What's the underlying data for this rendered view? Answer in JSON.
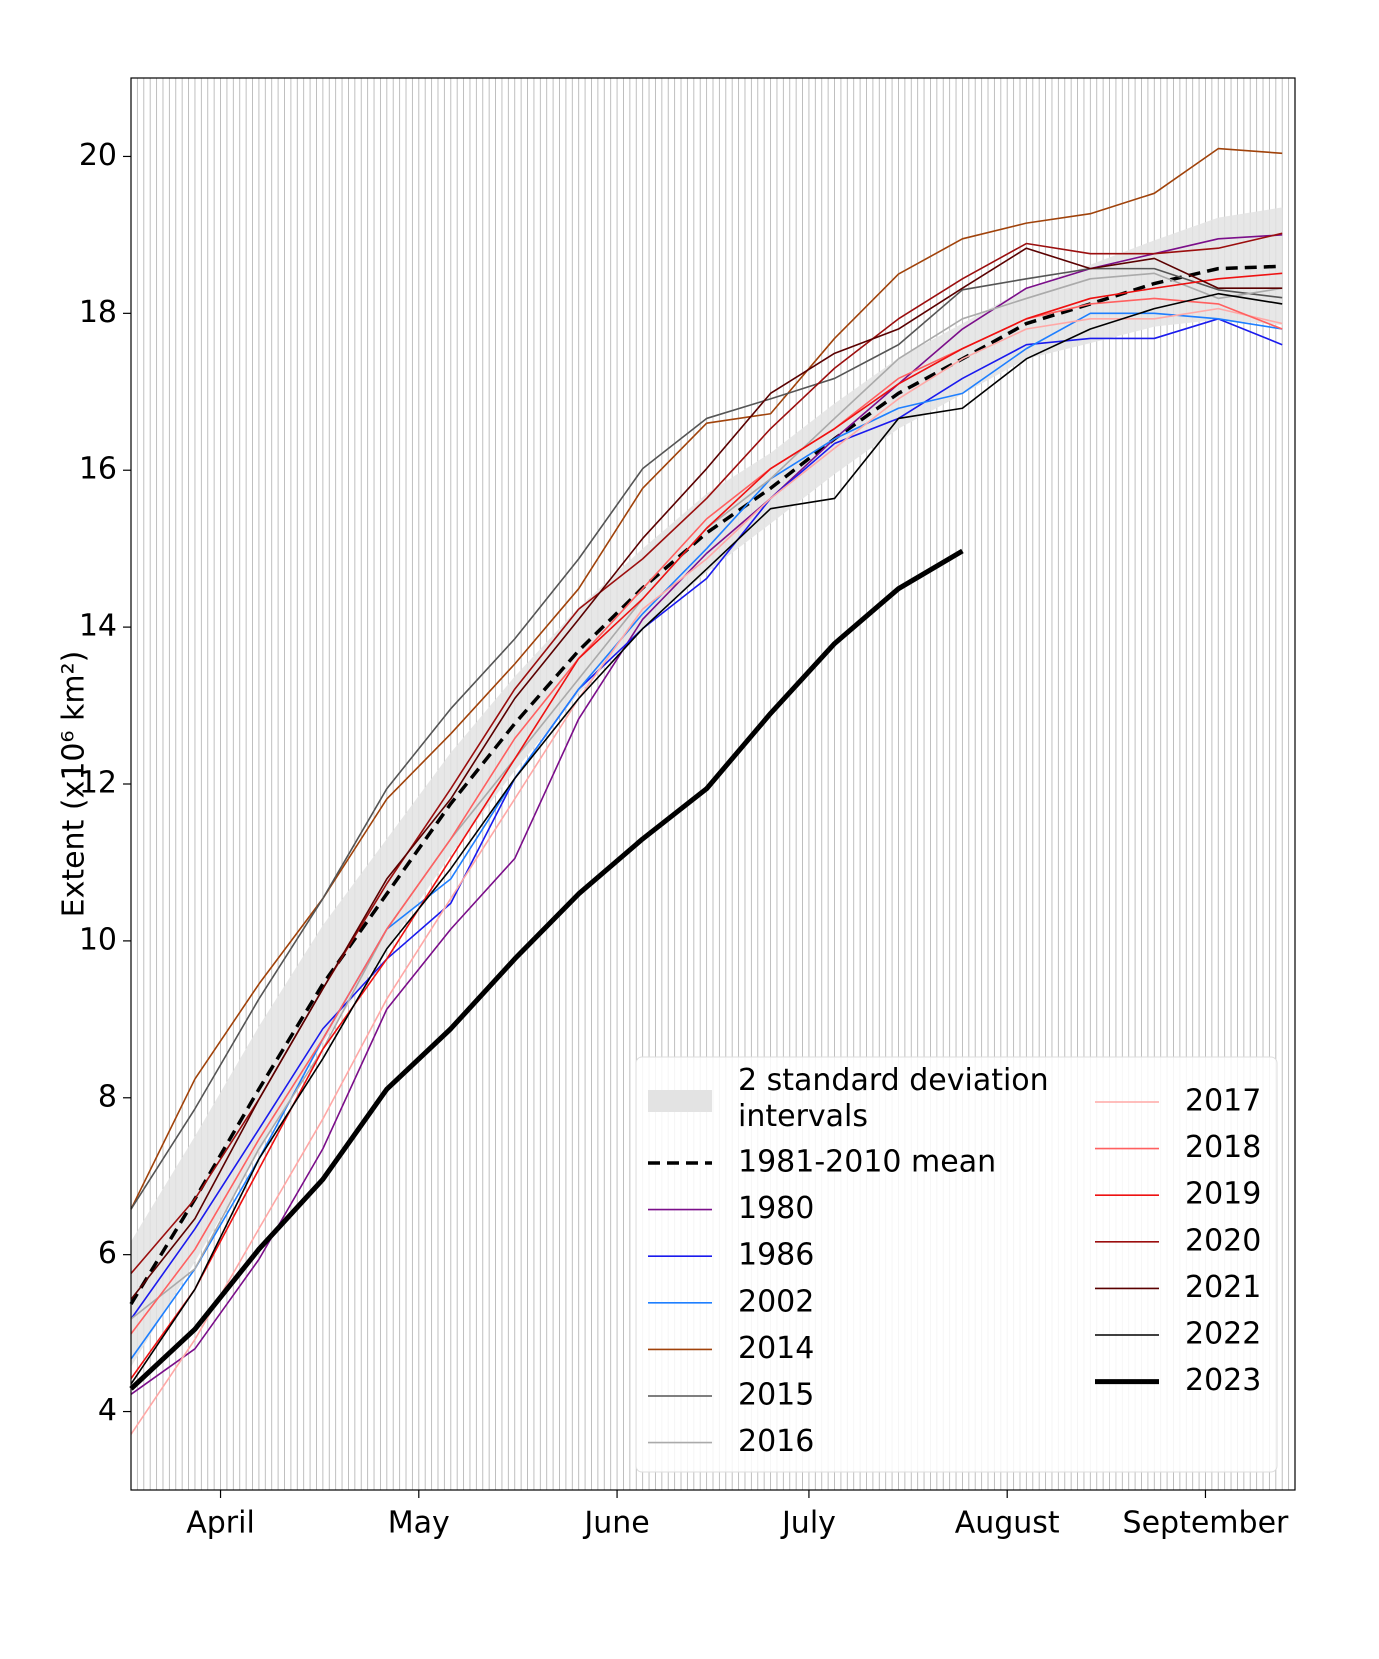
{
  "chart_data": {
    "type": "line",
    "y_label": "Extent (x10⁶ km²)",
    "x": [
      0,
      10,
      20,
      30,
      40,
      50,
      60,
      70,
      80,
      90,
      100,
      110,
      120,
      130,
      140,
      150,
      160,
      170,
      180
    ],
    "xlim": [
      0,
      182
    ],
    "xticks": [
      {
        "value": 14,
        "label": "April"
      },
      {
        "value": 45,
        "label": "May"
      },
      {
        "value": 76,
        "label": "June"
      },
      {
        "value": 106,
        "label": "July"
      },
      {
        "value": 137,
        "label": "August"
      },
      {
        "value": 168,
        "label": "September"
      }
    ],
    "ylim": [
      3,
      21
    ],
    "yticks": [
      4,
      6,
      8,
      10,
      12,
      14,
      16,
      18,
      20
    ],
    "grid": "daily",
    "legend": "lower right",
    "band": {
      "name": "2 standard deviation intervals",
      "color": "#e3e3e3",
      "upper": [
        6.17,
        7.51,
        8.91,
        10.2,
        11.3,
        12.4,
        13.37,
        14.25,
        15.0,
        15.7,
        16.22,
        16.85,
        17.43,
        17.87,
        18.32,
        18.62,
        18.93,
        19.22,
        19.35
      ],
      "lower": [
        4.57,
        5.91,
        7.31,
        8.7,
        9.9,
        11.1,
        12.17,
        13.15,
        14.0,
        14.7,
        15.32,
        15.95,
        16.53,
        16.97,
        17.42,
        17.62,
        17.83,
        17.92,
        17.85
      ]
    },
    "series": [
      {
        "name": "1981-2010 mean",
        "color": "#000000",
        "dashed": true,
        "line_width": 3.5,
        "values": [
          5.37,
          6.71,
          8.11,
          9.45,
          10.6,
          11.75,
          12.77,
          13.7,
          14.5,
          15.2,
          15.77,
          16.4,
          16.98,
          17.42,
          17.87,
          18.12,
          18.38,
          18.57,
          18.6
        ]
      },
      {
        "name": "1980",
        "color": "#7b0e8a",
        "line_width": 1.6,
        "values": [
          4.22,
          4.8,
          5.94,
          7.35,
          9.13,
          10.15,
          11.05,
          12.83,
          14.1,
          14.94,
          15.64,
          16.4,
          17.1,
          17.8,
          18.32,
          18.57,
          18.76,
          18.95,
          19.0
        ]
      },
      {
        "name": "1986",
        "color": "#1a1aee",
        "line_width": 1.6,
        "values": [
          5.18,
          6.33,
          7.6,
          8.88,
          9.77,
          10.48,
          12.07,
          13.21,
          13.98,
          14.62,
          15.64,
          16.34,
          16.66,
          17.17,
          17.6,
          17.68,
          17.68,
          17.93,
          17.6
        ]
      },
      {
        "name": "2002",
        "color": "#1e7fff",
        "line_width": 1.6,
        "values": [
          4.67,
          5.82,
          7.22,
          8.75,
          10.15,
          10.79,
          12.07,
          13.21,
          14.17,
          15.0,
          15.89,
          16.4,
          16.79,
          16.98,
          17.55,
          18.0,
          18.0,
          17.93,
          17.8
        ]
      },
      {
        "name": "2014",
        "color": "#a0420a",
        "line_width": 1.6,
        "values": [
          6.58,
          8.24,
          9.45,
          10.54,
          11.81,
          12.64,
          13.53,
          14.49,
          15.77,
          16.6,
          16.72,
          17.68,
          18.5,
          18.95,
          19.15,
          19.27,
          19.53,
          20.1,
          20.04
        ]
      },
      {
        "name": "2015",
        "color": "#555555",
        "line_width": 1.6,
        "values": [
          6.58,
          7.86,
          9.26,
          10.54,
          11.94,
          12.96,
          13.85,
          14.87,
          16.02,
          16.66,
          16.91,
          17.17,
          17.6,
          18.3,
          18.44,
          18.57,
          18.57,
          18.3,
          18.2
        ]
      },
      {
        "name": "2016",
        "color": "#aaaaaa",
        "line_width": 1.6,
        "values": [
          5.18,
          5.82,
          7.35,
          8.62,
          10.15,
          11.3,
          12.32,
          13.34,
          14.36,
          15.26,
          15.89,
          16.66,
          17.42,
          17.93,
          18.19,
          18.44,
          18.51,
          18.19,
          18.32
        ]
      },
      {
        "name": "2017",
        "color": "#ffa8a6",
        "line_width": 1.6,
        "values": [
          3.71,
          4.92,
          6.33,
          7.73,
          9.26,
          10.54,
          11.81,
          13.09,
          14.23,
          14.87,
          15.64,
          16.28,
          16.91,
          17.42,
          17.8,
          17.93,
          17.93,
          18.06,
          17.87
        ]
      },
      {
        "name": "2018",
        "color": "#ff6060",
        "line_width": 1.6,
        "values": [
          4.99,
          6.07,
          7.47,
          8.75,
          10.15,
          11.3,
          12.58,
          13.6,
          14.49,
          15.38,
          16.02,
          16.53,
          17.17,
          17.55,
          17.93,
          18.12,
          18.19,
          18.12,
          17.8
        ]
      },
      {
        "name": "2019",
        "color": "#ee1111",
        "line_width": 1.6,
        "values": [
          4.42,
          5.56,
          7.09,
          8.62,
          9.77,
          11.05,
          12.32,
          13.6,
          14.36,
          15.26,
          16.02,
          16.53,
          17.1,
          17.55,
          17.93,
          18.19,
          18.32,
          18.44,
          18.51
        ]
      },
      {
        "name": "2020",
        "color": "#9b0e0e",
        "line_width": 1.6,
        "values": [
          5.76,
          6.71,
          7.98,
          9.39,
          10.73,
          11.94,
          13.21,
          14.23,
          14.87,
          15.64,
          16.53,
          17.3,
          17.93,
          18.44,
          18.89,
          18.76,
          18.76,
          18.83,
          19.02
        ]
      },
      {
        "name": "2021",
        "color": "#5a0000",
        "line_width": 1.6,
        "values": [
          5.43,
          6.46,
          7.98,
          9.39,
          10.79,
          11.81,
          13.09,
          14.1,
          15.13,
          16.02,
          16.98,
          17.49,
          17.8,
          18.32,
          18.83,
          18.57,
          18.7,
          18.32,
          18.32
        ]
      },
      {
        "name": "2022",
        "color": "#000000",
        "line_width": 1.6,
        "values": [
          4.35,
          5.56,
          7.22,
          8.5,
          9.9,
          10.92,
          12.07,
          13.09,
          13.98,
          14.74,
          15.51,
          15.64,
          16.66,
          16.79,
          17.42,
          17.8,
          18.06,
          18.25,
          18.12
        ]
      },
      {
        "name": "2023",
        "color": "#000000",
        "line_width": 5,
        "values": [
          4.29,
          5.05,
          6.07,
          6.96,
          8.11,
          8.88,
          9.77,
          10.6,
          11.3,
          11.94,
          12.9,
          13.79,
          14.49,
          14.97,
          null,
          null,
          null,
          null,
          null
        ]
      }
    ]
  }
}
